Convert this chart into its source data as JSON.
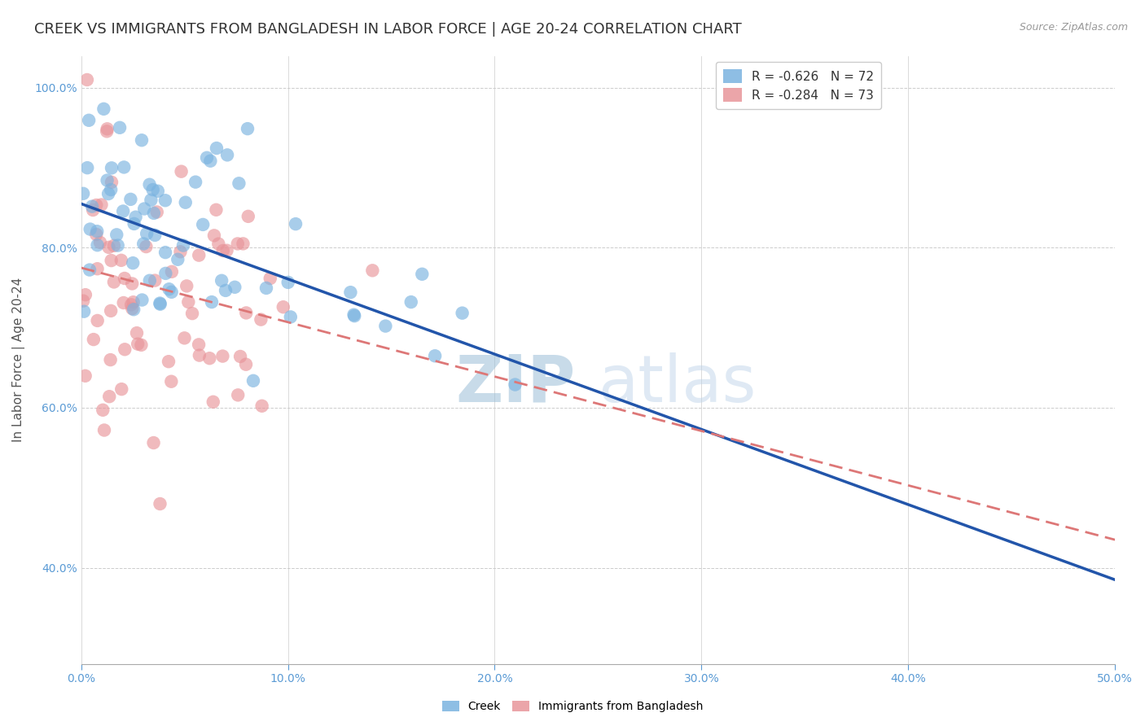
{
  "title": "CREEK VS IMMIGRANTS FROM BANGLADESH IN LABOR FORCE | AGE 20-24 CORRELATION CHART",
  "source_text": "Source: ZipAtlas.com",
  "ylabel_text": "In Labor Force | Age 20-24",
  "x_min": 0.0,
  "x_max": 0.5,
  "y_min": 0.28,
  "y_max": 1.04,
  "x_ticks": [
    0.0,
    0.1,
    0.2,
    0.3,
    0.4,
    0.5
  ],
  "x_tick_labels": [
    "0.0%",
    "10.0%",
    "20.0%",
    "30.0%",
    "40.0%",
    "50.0%"
  ],
  "y_ticks": [
    0.4,
    0.6,
    0.8,
    1.0
  ],
  "y_tick_labels": [
    "40.0%",
    "60.0%",
    "80.0%",
    "100.0%"
  ],
  "creek_color": "#7ab3e0",
  "bangladesh_color": "#e8959a",
  "creek_line_color": "#2255aa",
  "bangladesh_line_color": "#dd7777",
  "creek_R": -0.626,
  "creek_N": 72,
  "bangladesh_R": -0.284,
  "bangladesh_N": 73,
  "legend_creek_label": "R = -0.626   N = 72",
  "legend_bangladesh_label": "R = -0.284   N = 73",
  "creek_label": "Creek",
  "bangladesh_label": "Immigrants from Bangladesh",
  "watermark_zip": "ZIP",
  "watermark_atlas": "atlas",
  "title_fontsize": 13,
  "axis_label_fontsize": 11,
  "tick_fontsize": 10,
  "legend_fontsize": 11,
  "creek_line_intercept": 0.855,
  "creek_line_slope": -0.94,
  "bangladesh_line_intercept": 0.775,
  "bangladesh_line_slope": -0.68
}
